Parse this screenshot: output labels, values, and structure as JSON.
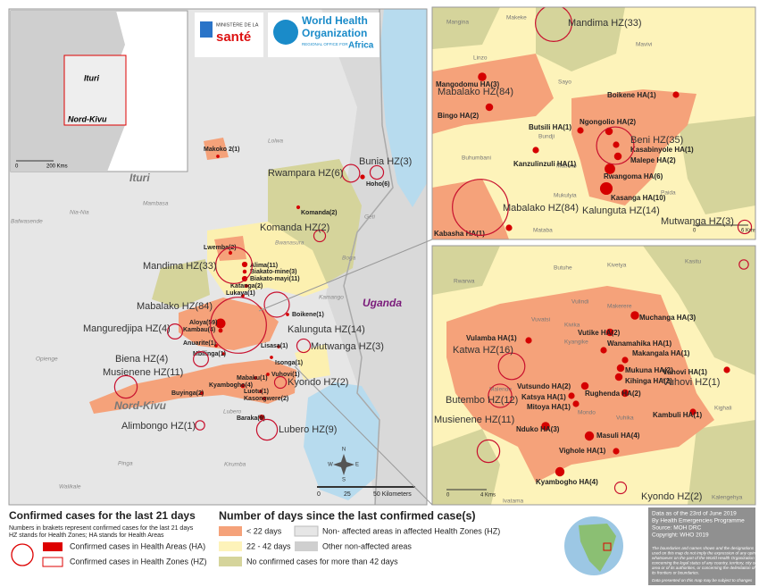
{
  "logos": {
    "ministry": [
      "MINISTÈRE DE LA",
      "santé"
    ],
    "who": [
      "World Health",
      "Organization",
      "REGIONAL OFFICE FOR",
      "Africa"
    ]
  },
  "inset": {
    "labels": [
      "Ituri",
      "Nord-Kivu"
    ],
    "scale": [
      "0",
      "200 Kms"
    ]
  },
  "main_map": {
    "regions": [
      "Ituri",
      "Nord-Kivu",
      "Uganda"
    ],
    "health_zones": [
      {
        "label": "Mandima HZ(33)",
        "cases": 33
      },
      {
        "label": "Rwampara HZ(6)",
        "cases": 6
      },
      {
        "label": "Bunia HZ(3)",
        "cases": 3
      },
      {
        "label": "Komanda HZ(2)",
        "cases": 2
      },
      {
        "label": "Mabalako HZ(84)",
        "cases": 84
      },
      {
        "label": "Kalunguta HZ(14)",
        "cases": 14
      },
      {
        "label": "Manguredjipa HZ(4)",
        "cases": 4
      },
      {
        "label": "Mutwanga HZ(3)",
        "cases": 3
      },
      {
        "label": "Biena HZ(4)",
        "cases": 4
      },
      {
        "label": "Musienene HZ(11)",
        "cases": 11
      },
      {
        "label": "Kyondo HZ(2)",
        "cases": 2
      },
      {
        "label": "Alimbongo HZ(1)",
        "cases": 1
      },
      {
        "label": "Lubero HZ(9)",
        "cases": 9
      }
    ],
    "health_areas": [
      {
        "label": "Makoko 2(1)",
        "cases": 1
      },
      {
        "label": "Hoho(6)",
        "cases": 6
      },
      {
        "label": "Lwemba(2)",
        "cases": 2
      },
      {
        "label": "Alima(11)",
        "cases": 11
      },
      {
        "label": "Biakato-mine(3)",
        "cases": 3
      },
      {
        "label": "Biakato-mayi(11)",
        "cases": 11
      },
      {
        "label": "Katanga(2)",
        "cases": 2
      },
      {
        "label": "Lukaya(1)",
        "cases": 1
      },
      {
        "label": "Boikene(1)",
        "cases": 1
      },
      {
        "label": "Aloya(59)",
        "cases": 59
      },
      {
        "label": "Kambau(4)",
        "cases": 4
      },
      {
        "label": "Anuarite(1)",
        "cases": 1
      },
      {
        "label": "Mbilinga(1)",
        "cases": 1
      },
      {
        "label": "Lisasa(1)",
        "cases": 1
      },
      {
        "label": "Isonga(1)",
        "cases": 1
      },
      {
        "label": "Mabaku(1)",
        "cases": 1
      },
      {
        "label": "Vuhovi(1)",
        "cases": 1
      },
      {
        "label": "Kyambogho(4)",
        "cases": 4
      },
      {
        "label": "Buyinga(2)",
        "cases": 2
      },
      {
        "label": "Luotu(1)",
        "cases": 1
      },
      {
        "label": "Kasongwere(2)",
        "cases": 2
      },
      {
        "label": "Baraka(9)",
        "cases": 9
      },
      {
        "label": "Komanda(2)",
        "cases": 2
      }
    ],
    "places": [
      "Mambasa",
      "Bafwasende",
      "Nia-Nia",
      "Lolwa",
      "Boga",
      "Geti",
      "Kamango",
      "Opienge",
      "Pinga",
      "Walikale",
      "Kirumba",
      "Bwanasura",
      "Lubero"
    ],
    "scale": [
      "0",
      "25",
      "50 Kilometers"
    ],
    "compass": [
      "N",
      "E",
      "S",
      "W"
    ]
  },
  "beni_panel": {
    "health_zones": [
      {
        "label": "Mandima HZ(33)",
        "cases": 33
      },
      {
        "label": "Mabalako HZ(84)"
      },
      {
        "label": "Beni HZ(35)",
        "cases": 35
      },
      {
        "label": "Mabalako HZ(84)",
        "cases": 84
      },
      {
        "label": "Kalunguta HZ(14)"
      },
      {
        "label": "Mutwanga HZ(3)",
        "cases": 3
      }
    ],
    "health_areas": [
      {
        "label": "Mangodomu HA(3)",
        "cases": 3
      },
      {
        "label": "Bingo HA(2)",
        "cases": 2
      },
      {
        "label": "Boikene HA(1)",
        "cases": 1
      },
      {
        "label": "Butsili HA(1)",
        "cases": 1
      },
      {
        "label": "Ngongolio HA(2)",
        "cases": 2
      },
      {
        "label": "Kasabinyole HA(1)",
        "cases": 1
      },
      {
        "label": "Malepe HA(2)",
        "cases": 2
      },
      {
        "label": "Kanzulinzuli HA(1)",
        "cases": 1
      },
      {
        "label": "Rwangoma HA(6)",
        "cases": 6
      },
      {
        "label": "Kasanga HA(10)",
        "cases": 10
      },
      {
        "label": "Kabasha HA(1)",
        "cases": 1
      }
    ],
    "places": [
      "Mangina",
      "Makeke",
      "Linzo",
      "Mavivi",
      "Sayo",
      "Bundji",
      "Buhumbani",
      "Mabolio",
      "Mukulyia",
      "Paida",
      "Mataba"
    ],
    "scale": [
      "0",
      "6 Kms"
    ]
  },
  "butembo_panel": {
    "health_zones": [
      {
        "label": "Katwa HZ(16)",
        "cases": 16
      },
      {
        "label": "Butembo HZ(12)",
        "cases": 12
      },
      {
        "label": "Musienene HZ(11)",
        "cases": 11
      },
      {
        "label": "Vuhovi HZ(1)",
        "cases": 1
      },
      {
        "label": "Kyondo HZ(2)",
        "cases": 2
      }
    ],
    "health_areas": [
      {
        "label": "Vulamba HA(1)",
        "cases": 1
      },
      {
        "label": "Vutike HA(2)",
        "cases": 2
      },
      {
        "label": "Muchanga HA(3)",
        "cases": 3
      },
      {
        "label": "Wanamahika HA(1)",
        "cases": 1
      },
      {
        "label": "Makangala HA(1)",
        "cases": 1
      },
      {
        "label": "Mukuna HA(2)",
        "cases": 2
      },
      {
        "label": "Kihinga HA(2)",
        "cases": 2
      },
      {
        "label": "Rughenda HA(2)",
        "cases": 2
      },
      {
        "label": "Vutsundo HA(2)",
        "cases": 2
      },
      {
        "label": "Katsya HA(1)",
        "cases": 1
      },
      {
        "label": "Mitoya HA(1)",
        "cases": 1
      },
      {
        "label": "Vuhovi HA(1)",
        "cases": 1
      },
      {
        "label": "Kambuli HA(1)",
        "cases": 1
      },
      {
        "label": "Masuli HA(4)",
        "cases": 4
      },
      {
        "label": "Nduko HA(3)",
        "cases": 3
      },
      {
        "label": "Vighole HA(1)",
        "cases": 1
      },
      {
        "label": "Kyambogho HA(4)",
        "cases": 4
      }
    ],
    "places": [
      "Rwarwa",
      "Butuhe",
      "Kivetya",
      "Kasitu",
      "Vulindi",
      "Makerere",
      "Vuvatsi",
      "Kivika",
      "Kyangike",
      "Malende",
      "Vuhika",
      "Mondo",
      "Kighali",
      "Kalengehya",
      "Ivatama"
    ],
    "scale": [
      "0",
      "4 Kms"
    ]
  },
  "legend": {
    "title": "Confirmed cases for the last 21 days",
    "notes": [
      "Numbers in brakets represent confirmed cases for the last 21 days",
      "HZ stands for Health Zones; HA stands for Health Areas"
    ],
    "ha_label": "Confirmed cases in Health Areas (HA)",
    "hz_label": "Confirmed cases in Health Zones (HZ)",
    "days_title": "Number of days since the last confirmed case(s)",
    "days": [
      "< 22 days",
      "22 - 42 days",
      "No confirmed cases for more than 42 days"
    ],
    "other": [
      "Non- affected areas in affected Health Zones (HZ)",
      "Other non-affected areas"
    ]
  },
  "info": {
    "lines": [
      "Data as of the 23rd of June 2019",
      "By Health Emergencies Programme",
      "Source: MOH DRC",
      "Copyright: WHO 2019"
    ],
    "disclaimer": [
      "The boundaries and names shown and the designations",
      "used on this map do not imply the expression of any opinion",
      "whatsoever on the part of the World Health Organization",
      "concerning the legal status of any country, territory, city or",
      "area or of its authorities, or concerning the delimitation of",
      "its frontiers or boundaries.",
      "Data presented on this map may be subject to changes"
    ]
  }
}
